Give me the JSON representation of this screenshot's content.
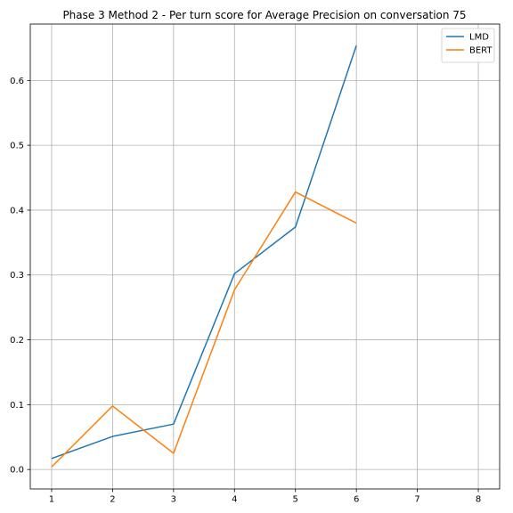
{
  "chart_data": {
    "type": "line",
    "title": "Phase 3 Method 2 - Per turn score for Average Precision on conversation 75",
    "xlabel": "",
    "ylabel": "",
    "x_ticks": [
      1,
      2,
      3,
      4,
      5,
      6,
      7,
      8
    ],
    "y_ticks": [
      0.0,
      0.1,
      0.2,
      0.3,
      0.4,
      0.5,
      0.6
    ],
    "x_tick_labels": [
      "1",
      "2",
      "3",
      "4",
      "5",
      "6",
      "7",
      "8"
    ],
    "y_tick_labels": [
      "0.0",
      "0.1",
      "0.2",
      "0.3",
      "0.4",
      "0.5",
      "0.6"
    ],
    "xlim": [
      0.65,
      8.35
    ],
    "ylim": [
      -0.03,
      0.687
    ],
    "grid": true,
    "legend_position": "top-right",
    "series": [
      {
        "name": "LMD",
        "color": "#1f77b4",
        "x": [
          1,
          2,
          3,
          4,
          5,
          6
        ],
        "values": [
          0.017,
          0.051,
          0.07,
          0.302,
          0.374,
          0.654
        ]
      },
      {
        "name": "BERT",
        "color": "#ff7f0e",
        "x": [
          1,
          2,
          3,
          4,
          5,
          6
        ],
        "values": [
          0.004,
          0.098,
          0.025,
          0.277,
          0.428,
          0.38
        ]
      }
    ]
  }
}
